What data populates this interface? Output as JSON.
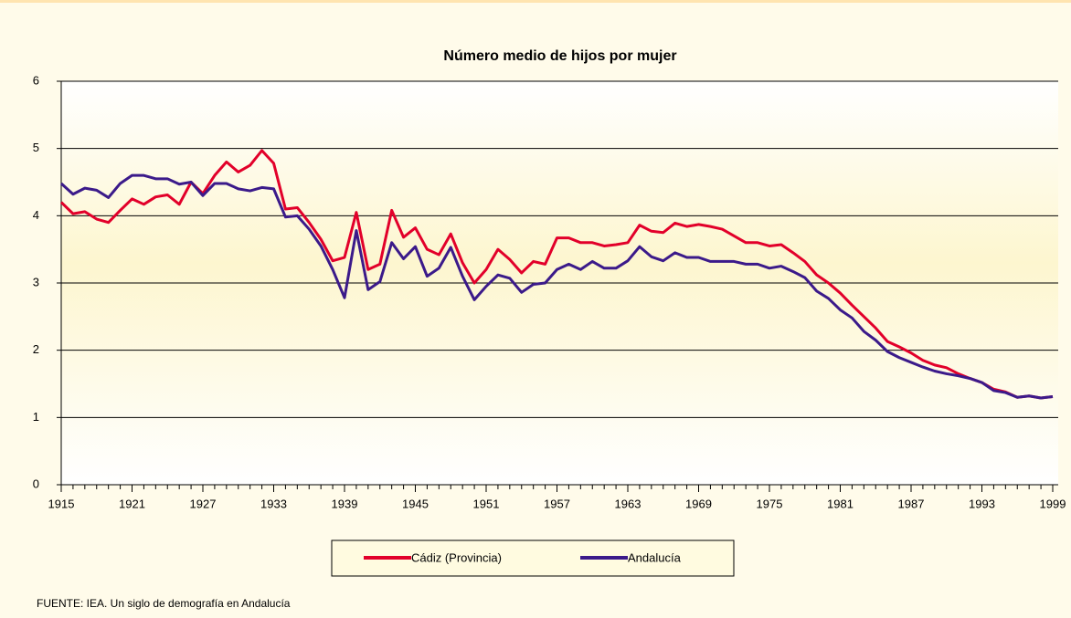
{
  "chart_data": {
    "type": "line",
    "title": "Número medio de hijos por mujer",
    "x": [
      1915,
      1916,
      1917,
      1918,
      1919,
      1920,
      1921,
      1922,
      1923,
      1924,
      1925,
      1926,
      1927,
      1928,
      1929,
      1930,
      1931,
      1932,
      1933,
      1934,
      1935,
      1936,
      1937,
      1938,
      1939,
      1940,
      1941,
      1942,
      1943,
      1944,
      1945,
      1946,
      1947,
      1948,
      1949,
      1950,
      1951,
      1952,
      1953,
      1954,
      1955,
      1956,
      1957,
      1958,
      1959,
      1960,
      1961,
      1962,
      1963,
      1964,
      1965,
      1966,
      1967,
      1968,
      1969,
      1970,
      1971,
      1972,
      1973,
      1974,
      1975,
      1976,
      1977,
      1978,
      1979,
      1980,
      1981,
      1982,
      1983,
      1984,
      1985,
      1986,
      1987,
      1988,
      1989,
      1990,
      1991,
      1992,
      1993,
      1994,
      1995,
      1996,
      1997,
      1998,
      1999
    ],
    "series": [
      {
        "name": "Cádiz (Provincia)",
        "color": "#e2002a",
        "values": [
          4.2,
          4.03,
          4.06,
          3.95,
          3.9,
          4.08,
          4.25,
          4.17,
          4.28,
          4.31,
          4.17,
          4.5,
          4.33,
          4.6,
          4.8,
          4.65,
          4.75,
          4.97,
          4.78,
          4.1,
          4.12,
          3.9,
          3.65,
          3.33,
          3.38,
          4.05,
          3.2,
          3.28,
          4.08,
          3.68,
          3.82,
          3.5,
          3.42,
          3.73,
          3.3,
          3.0,
          3.2,
          3.5,
          3.35,
          3.15,
          3.32,
          3.28,
          3.67,
          3.67,
          3.6,
          3.6,
          3.55,
          3.57,
          3.6,
          3.86,
          3.77,
          3.75,
          3.89,
          3.84,
          3.87,
          3.84,
          3.8,
          3.7,
          3.6,
          3.6,
          3.55,
          3.57,
          3.45,
          3.32,
          3.12,
          3.0,
          2.85,
          2.67,
          2.5,
          2.33,
          2.13,
          2.05,
          1.96,
          1.85,
          1.78,
          1.74,
          1.65,
          1.58,
          1.52,
          1.42,
          1.38,
          1.3,
          1.32,
          1.29,
          1.31
        ]
      },
      {
        "name": "Andalucía",
        "color": "#3b1a8a",
        "values": [
          4.48,
          4.32,
          4.41,
          4.38,
          4.27,
          4.48,
          4.6,
          4.6,
          4.55,
          4.55,
          4.47,
          4.5,
          4.3,
          4.48,
          4.48,
          4.4,
          4.37,
          4.42,
          4.4,
          3.98,
          4.0,
          3.8,
          3.55,
          3.2,
          2.78,
          3.78,
          2.9,
          3.02,
          3.6,
          3.36,
          3.54,
          3.1,
          3.22,
          3.53,
          3.1,
          2.75,
          2.95,
          3.12,
          3.07,
          2.86,
          2.98,
          3.0,
          3.2,
          3.28,
          3.2,
          3.32,
          3.22,
          3.22,
          3.33,
          3.54,
          3.39,
          3.33,
          3.45,
          3.38,
          3.38,
          3.32,
          3.32,
          3.32,
          3.28,
          3.28,
          3.22,
          3.25,
          3.17,
          3.08,
          2.88,
          2.77,
          2.6,
          2.48,
          2.28,
          2.15,
          1.98,
          1.89,
          1.82,
          1.75,
          1.69,
          1.65,
          1.62,
          1.58,
          1.52,
          1.4,
          1.37,
          1.3,
          1.32,
          1.29,
          1.31
        ]
      }
    ],
    "xlim": [
      1915,
      1999
    ],
    "xticks": [
      1915,
      1921,
      1927,
      1933,
      1939,
      1945,
      1951,
      1957,
      1963,
      1969,
      1975,
      1981,
      1987,
      1993,
      1999
    ],
    "ylim": [
      0,
      6
    ],
    "yticks": [
      0,
      1,
      2,
      3,
      4,
      5,
      6
    ],
    "grid": true,
    "legend": "bottom",
    "source": "FUENTE: IEA. Un siglo de demografía en Andalucía"
  }
}
